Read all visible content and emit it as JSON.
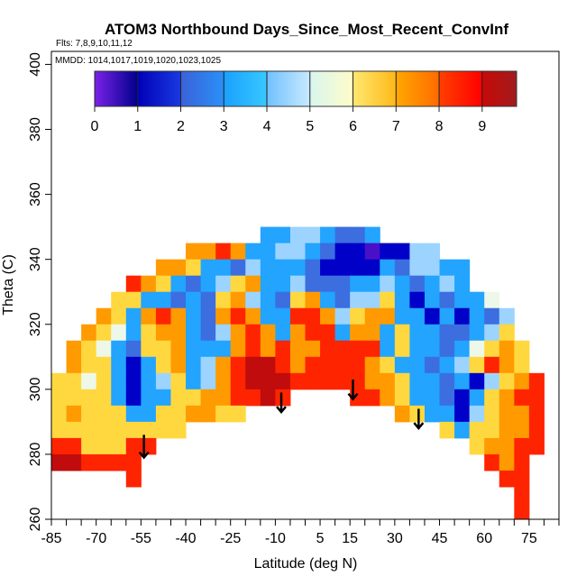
{
  "chart_data": {
    "type": "heatmap",
    "title": "ATOM3 Northbound Days_Since_Most_Recent_ConvInf",
    "subtitle_flights": "Flts: 7,8,9,10,11,12",
    "subtitle_dates": "MMDD: 1014,1017,1019,1020,1023,1025",
    "xlabel": "Latitude (deg N)",
    "ylabel": "Theta (C)",
    "xlim": [
      -85,
      85
    ],
    "ylim": [
      260,
      404
    ],
    "x_ticks": [
      -85,
      -80,
      -75,
      -70,
      -65,
      -60,
      -55,
      -50,
      -45,
      -40,
      -35,
      -30,
      -25,
      -20,
      -15,
      -10,
      -5,
      0,
      5,
      10,
      15,
      20,
      25,
      30,
      35,
      40,
      45,
      50,
      55,
      60,
      65,
      70,
      75,
      80,
      85
    ],
    "x_tick_labels": [
      "-85",
      "-70",
      "-55",
      "-40",
      "-25",
      "-10",
      "5",
      "15",
      "30",
      "45",
      "60",
      "75"
    ],
    "y_tick_labels": [
      "260",
      "280",
      "300",
      "320",
      "340",
      "360",
      "380",
      "400"
    ],
    "colorbar": {
      "range": [
        0,
        9.8
      ],
      "tick_labels": [
        "0",
        "1",
        "2",
        "3",
        "4",
        "5",
        "6",
        "7",
        "8",
        "9"
      ],
      "bin_colors": [
        [
          "#7a22e8",
          "#00008b"
        ],
        [
          "#0000b8",
          "#1a3ae0"
        ],
        [
          "#3a62d8",
          "#2a90f8"
        ],
        [
          "#1aa0ff",
          "#38c8ff"
        ],
        [
          "#70c0ff",
          "#c8eaff"
        ],
        [
          "#d8f6f0",
          "#fffcc8"
        ],
        [
          "#ffe870",
          "#ffb818"
        ],
        [
          "#ffa800",
          "#ff6a00"
        ],
        [
          "#ff4000",
          "#ff0000"
        ],
        [
          "#c80808",
          "#a01c1c"
        ]
      ]
    },
    "cell_colors": [
      "#4a10c8",
      "#0000c8",
      "#3c6ee0",
      "#22a4ff",
      "#9cd4ff",
      "#eef8e8",
      "#ffd840",
      "#ff9a00",
      "#ff2400",
      "#c00c0c"
    ],
    "grid": {
      "lat_centers": [
        -82.5,
        -77.5,
        -72.5,
        -67.5,
        -62.5,
        -57.5,
        -52.5,
        -47.5,
        -42.5,
        -37.5,
        -32.5,
        -27.5,
        -22.5,
        -17.5,
        -12.5,
        -7.5,
        -2.5,
        2.5,
        7.5,
        12.5,
        17.5,
        22.5,
        27.5,
        32.5,
        37.5,
        42.5,
        47.5,
        52.5,
        57.5,
        62.5,
        67.5,
        72.5,
        77.5
      ],
      "theta_centers": [
        347.5,
        342.5,
        337.5,
        332.5,
        327.5,
        322.5,
        317.5,
        312.5,
        307.5,
        302.5,
        297.5,
        292.5,
        287.5,
        282.5,
        277.5,
        272.5,
        267.5,
        262.5
      ],
      "days": [
        "..............33443223...........",
        ".........77873344321101144.......",
        ".......776332433321111324433.....",
        ".....87632346733422233432343.....",
        "....66332326743267324463132335...",
        "...7637873278733887467733131324..",
        "..76536773247873788377363322346..",
        ".7653266733378787788883633235676.",
        ".7663136734789987888876332346876.",
        "665631346347899988888776332314678",
        "6666313366778898....8876332136788",
        "6766633667766..........7633146778",
        "666666666.................6366778",
        "8866688.....................67788",
        "998888.......................878.",
        ".....8........................88.",
        "...............................8.",
        "...............................8."
      ]
    },
    "markers": [
      {
        "type": "down-arrow",
        "lat": -54,
        "theta_from": 286,
        "theta_to": 279
      },
      {
        "type": "down-arrow",
        "lat": -8,
        "theta_from": 299,
        "theta_to": 293
      },
      {
        "type": "down-arrow",
        "lat": 16,
        "theta_from": 303,
        "theta_to": 297
      },
      {
        "type": "down-arrow",
        "lat": 38,
        "theta_from": 294,
        "theta_to": 288
      }
    ]
  }
}
